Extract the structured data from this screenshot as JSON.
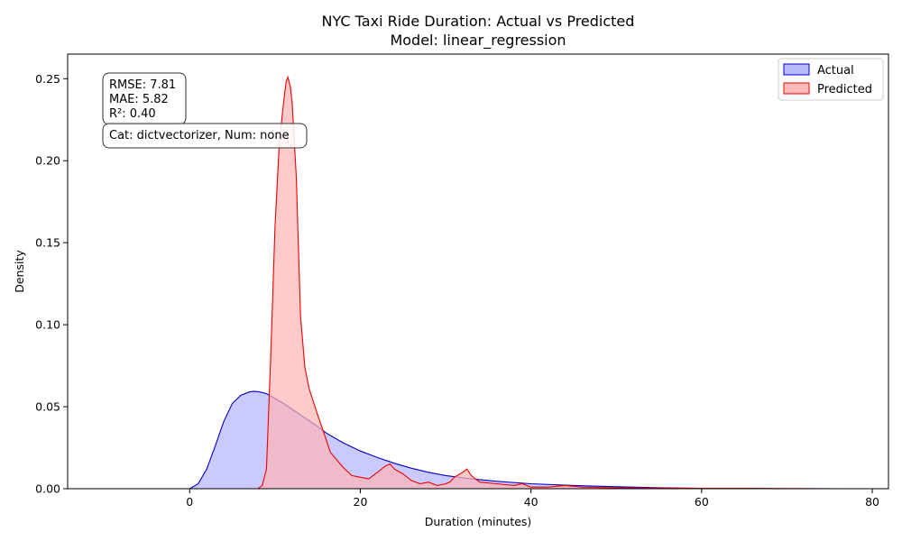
{
  "chart_data": {
    "type": "area",
    "title": "NYC Taxi Ride Duration: Actual vs Predicted",
    "subtitle": "Model: linear_regression",
    "xlabel": "Duration (minutes)",
    "ylabel": "Density",
    "xlim": [
      -14.3,
      81.9
    ],
    "ylim": [
      0,
      0.265
    ],
    "x_ticks": [
      0,
      20,
      40,
      60,
      80
    ],
    "y_ticks": [
      0.0,
      0.05,
      0.1,
      0.15,
      0.2,
      0.25
    ],
    "x_tick_labels": [
      "0",
      "20",
      "40",
      "60",
      "80"
    ],
    "y_tick_labels": [
      "0.00",
      "0.05",
      "0.10",
      "0.15",
      "0.20",
      "0.25"
    ],
    "legend": {
      "position": "top-right"
    },
    "grid": false,
    "annotations": [
      {
        "lines": [
          "RMSE: 7.81",
          "MAE: 5.82",
          "R²: 0.40"
        ]
      },
      {
        "lines": [
          "Cat: dictvectorizer, Num: none"
        ]
      }
    ],
    "series": [
      {
        "name": "Actual",
        "color": "#0000cc",
        "fill": "#b3b3ff",
        "x": [
          -13,
          0,
          1,
          2,
          3,
          4,
          5,
          6,
          7,
          7.5,
          8,
          9,
          10,
          11,
          12,
          13,
          14,
          15,
          16,
          18,
          20,
          22,
          24,
          26,
          28,
          30,
          33,
          36,
          40,
          45,
          50,
          55,
          60
        ],
        "y": [
          0,
          0,
          0.003,
          0.012,
          0.026,
          0.041,
          0.052,
          0.057,
          0.059,
          0.0593,
          0.0592,
          0.058,
          0.055,
          0.052,
          0.0485,
          0.045,
          0.0415,
          0.038,
          0.034,
          0.028,
          0.023,
          0.019,
          0.0155,
          0.0125,
          0.01,
          0.008,
          0.006,
          0.0045,
          0.003,
          0.002,
          0.0012,
          0.0006,
          0.0002
        ]
      },
      {
        "name": "Predicted",
        "color": "#ee0000",
        "fill": "#ffb3b3",
        "x": [
          -13,
          8,
          8.5,
          9,
          9.5,
          10,
          10.5,
          11,
          11.3,
          11.5,
          11.8,
          12,
          12.5,
          13,
          13.5,
          14,
          15,
          16,
          16.5,
          17,
          18,
          19,
          20,
          21,
          21.5,
          22,
          23,
          23.5,
          24,
          25,
          26,
          27,
          28,
          29,
          30,
          30.5,
          31,
          32,
          32.5,
          33,
          34,
          36,
          38,
          39,
          40,
          42,
          44,
          46,
          50,
          55,
          60,
          65,
          70,
          77
        ],
        "y": [
          0,
          0,
          0.002,
          0.012,
          0.08,
          0.16,
          0.21,
          0.235,
          0.248,
          0.251,
          0.245,
          0.236,
          0.19,
          0.105,
          0.074,
          0.061,
          0.045,
          0.03,
          0.022,
          0.019,
          0.013,
          0.008,
          0.007,
          0.006,
          0.008,
          0.01,
          0.014,
          0.015,
          0.012,
          0.009,
          0.005,
          0.003,
          0.004,
          0.002,
          0.003,
          0.004,
          0.007,
          0.01,
          0.012,
          0.008,
          0.004,
          0.003,
          0.002,
          0.003,
          0.001,
          0.001,
          0.002,
          0.001,
          0.0005,
          0.0004,
          0.0003,
          0.0002,
          0.0001,
          0
        ]
      }
    ]
  }
}
